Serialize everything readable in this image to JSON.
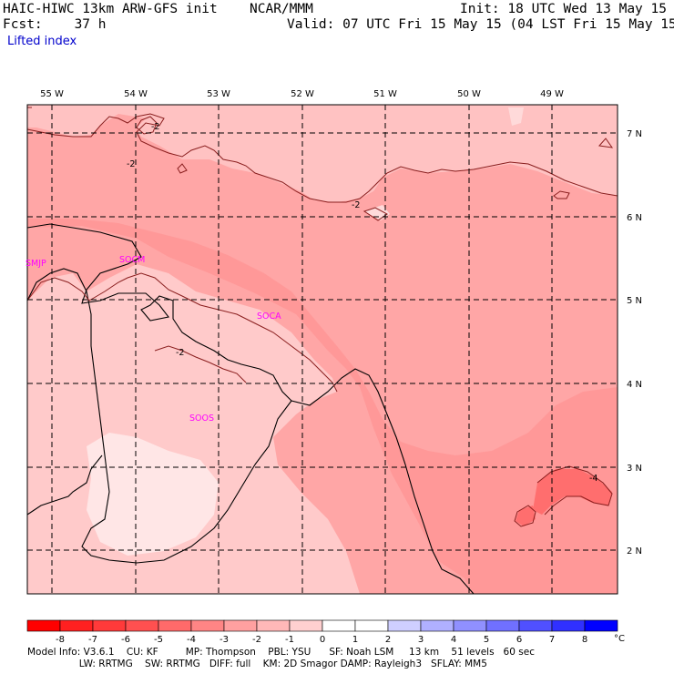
{
  "header": {
    "model": "HAIC-HIWC 13km ARW-GFS init",
    "org": "NCAR/MMM",
    "init": "Init: 18 UTC Wed 13 May 15",
    "fcst": "Fcst:    37 h",
    "valid": "Valid: 07 UTC Fri 15 May 15 (04 LST Fri 15 May 15)",
    "field": "Lifted index"
  },
  "map": {
    "lon_labels": [
      "55 W",
      "54 W",
      "53 W",
      "52 W",
      "51 W",
      "50 W",
      "49 W"
    ],
    "lat_labels": [
      "7 N",
      "6 N",
      "5 N",
      "4 N",
      "3 N",
      "2 N"
    ],
    "stations": [
      "SMJP",
      "SOCM",
      "SOCA",
      "SOOS"
    ],
    "contour_labels": [
      "-2",
      "-2",
      "-2",
      "-2",
      "-4"
    ]
  },
  "colorbar": {
    "ticks": [
      "-8",
      "-7",
      "-6",
      "-5",
      "-4",
      "-3",
      "-2",
      "-1",
      "0",
      "1",
      "2",
      "3",
      "4",
      "5",
      "6",
      "7",
      "8"
    ],
    "unit": "°C",
    "colors": [
      "#ff0000",
      "#ff2020",
      "#ff3a3a",
      "#ff5050",
      "#ff6a6a",
      "#ff8585",
      "#ffa0a0",
      "#ffb8b8",
      "#ffd0d0",
      "#ffffff",
      "#ffffff",
      "#cfcfff",
      "#b0b0ff",
      "#9090ff",
      "#7070ff",
      "#5050ff",
      "#3030ff",
      "#0000ff"
    ]
  },
  "footer": {
    "line1": "Model Info: V3.6.1    CU: KF         MP: Thompson    PBL: YSU      SF: Noah LSM     13 km    51 levels   60 sec",
    "line2": "                 LW: RRTMG    SW: RRTMG   DIFF: full    KM: 2D Smagor DAMP: Rayleigh3   SFLAY: MM5"
  }
}
